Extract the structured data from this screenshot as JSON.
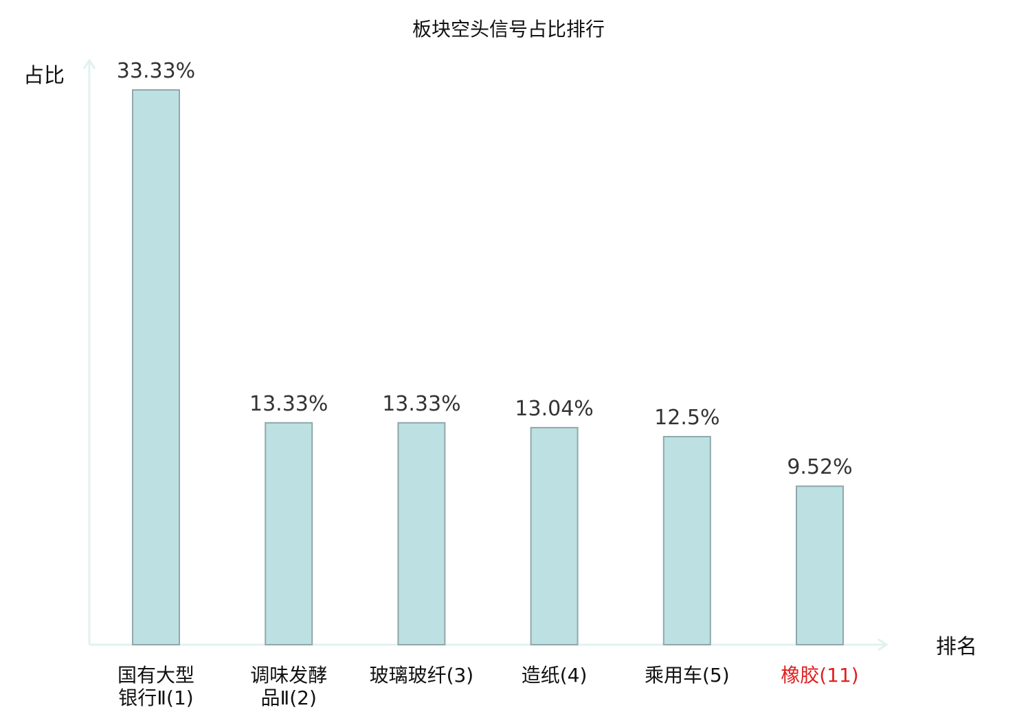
{
  "chart_data": {
    "type": "bar",
    "title": "板块空头信号占比排行",
    "ylabel": "占比",
    "xlabel": "排名",
    "ylim": [
      0,
      35
    ],
    "grid": false,
    "categories": [
      [
        "国有大型",
        "银行Ⅱ(1)"
      ],
      [
        "调味发酵",
        "品Ⅱ(2)"
      ],
      [
        "玻璃玻纤(3)"
      ],
      [
        "造纸(4)"
      ],
      [
        "乘用车(5)"
      ],
      [
        "橡胶(11)"
      ]
    ],
    "values": [
      33.33,
      13.33,
      13.33,
      13.04,
      12.5,
      9.52
    ],
    "value_labels": [
      "33.33%",
      "13.33%",
      "13.33%",
      "13.04%",
      "12.5%",
      "9.52%"
    ],
    "highlight_index": 5
  },
  "colors": {
    "bar_fill": "#bde0e3",
    "bar_stroke": "#8fa8aa",
    "axis": "#e0f2ef",
    "highlight_text": "#e02020",
    "text": "#111111"
  }
}
